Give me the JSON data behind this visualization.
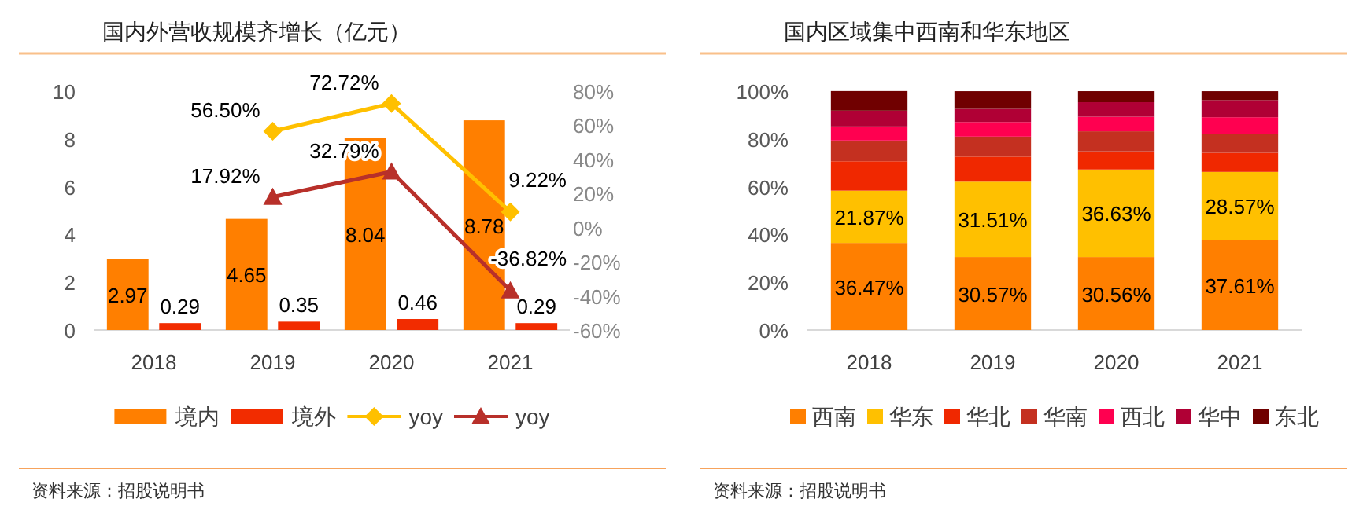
{
  "chart_data": [
    {
      "type": "bar",
      "title": "国内外营收规模齐增长（亿元）",
      "categories": [
        "2018",
        "2019",
        "2020",
        "2021"
      ],
      "series": [
        {
          "name": "境内",
          "type": "bar",
          "color": "#ff7f00",
          "values": [
            2.97,
            4.65,
            8.04,
            8.78
          ],
          "value_labels": [
            "2.97",
            "4.65",
            "8.04",
            "8.78"
          ]
        },
        {
          "name": "境外",
          "type": "bar",
          "color": "#f22c00",
          "values": [
            0.29,
            0.35,
            0.46,
            0.29
          ],
          "value_labels": [
            "0.29",
            "0.35",
            "0.46",
            "0.29"
          ]
        },
        {
          "name": "yoy",
          "type": "line",
          "axis": "y2",
          "marker": "diamond",
          "color": "#ffc000",
          "values": [
            null,
            56.5,
            72.72,
            9.22
          ],
          "value_labels": [
            null,
            "56.50%",
            "72.72%",
            "9.22%"
          ]
        },
        {
          "name": "yoy",
          "type": "line",
          "axis": "y2",
          "marker": "triangle",
          "color": "#b8302a",
          "values": [
            null,
            17.92,
            32.79,
            -36.82
          ],
          "value_labels": [
            null,
            "17.92%",
            "32.79%",
            "-36.82%"
          ]
        }
      ],
      "ylim": [
        0,
        10
      ],
      "yticks": [
        0,
        2,
        4,
        6,
        8,
        10
      ],
      "y2lim": [
        -60,
        80
      ],
      "y2ticks": [
        {
          "value": -60,
          "label": "-60%"
        },
        {
          "value": -40,
          "label": "-40%"
        },
        {
          "value": -20,
          "label": "-20%"
        },
        {
          "value": 0,
          "label": "0%"
        },
        {
          "value": 20,
          "label": "20%"
        },
        {
          "value": 40,
          "label": "40%"
        },
        {
          "value": 60,
          "label": "60%"
        },
        {
          "value": 80,
          "label": "80%"
        }
      ],
      "legend": "bottom",
      "annotations": [
        "资料来源：招股说明书"
      ]
    },
    {
      "type": "bar",
      "stacked": true,
      "title": "国内区域集中西南和华东地区",
      "categories": [
        "2018",
        "2019",
        "2020",
        "2021"
      ],
      "series": [
        {
          "name": "西南",
          "color": "#ff7f00",
          "values": [
            36.47,
            30.57,
            30.56,
            37.61
          ],
          "value_labels": [
            "36.47%",
            "30.57%",
            "30.56%",
            "37.61%"
          ]
        },
        {
          "name": "华东",
          "color": "#ffc000",
          "values": [
            21.87,
            31.51,
            36.63,
            28.57
          ],
          "value_labels": [
            "21.87%",
            "31.51%",
            "36.63%",
            "28.57%"
          ]
        },
        {
          "name": "华北",
          "color": "#f02800",
          "values": [
            12.3,
            10.5,
            7.6,
            8.0
          ]
        },
        {
          "name": "华南",
          "color": "#c43020",
          "values": [
            8.7,
            8.4,
            8.4,
            7.9
          ]
        },
        {
          "name": "西北",
          "color": "#ff0050",
          "values": [
            5.9,
            6.1,
            6.1,
            7.0
          ]
        },
        {
          "name": "华中",
          "color": "#b00035",
          "values": [
            6.6,
            5.5,
            6.1,
            7.2
          ]
        },
        {
          "name": "东北",
          "color": "#700000",
          "values": [
            8.2,
            7.4,
            4.6,
            3.7
          ]
        }
      ],
      "ylim": [
        0,
        100
      ],
      "yticks": [
        {
          "value": 0,
          "label": "0%"
        },
        {
          "value": 20,
          "label": "20%"
        },
        {
          "value": 40,
          "label": "40%"
        },
        {
          "value": 60,
          "label": "60%"
        },
        {
          "value": 80,
          "label": "80%"
        },
        {
          "value": 100,
          "label": "100%"
        }
      ],
      "legend": "bottom",
      "annotations": [
        "资料来源：招股说明书"
      ]
    }
  ]
}
